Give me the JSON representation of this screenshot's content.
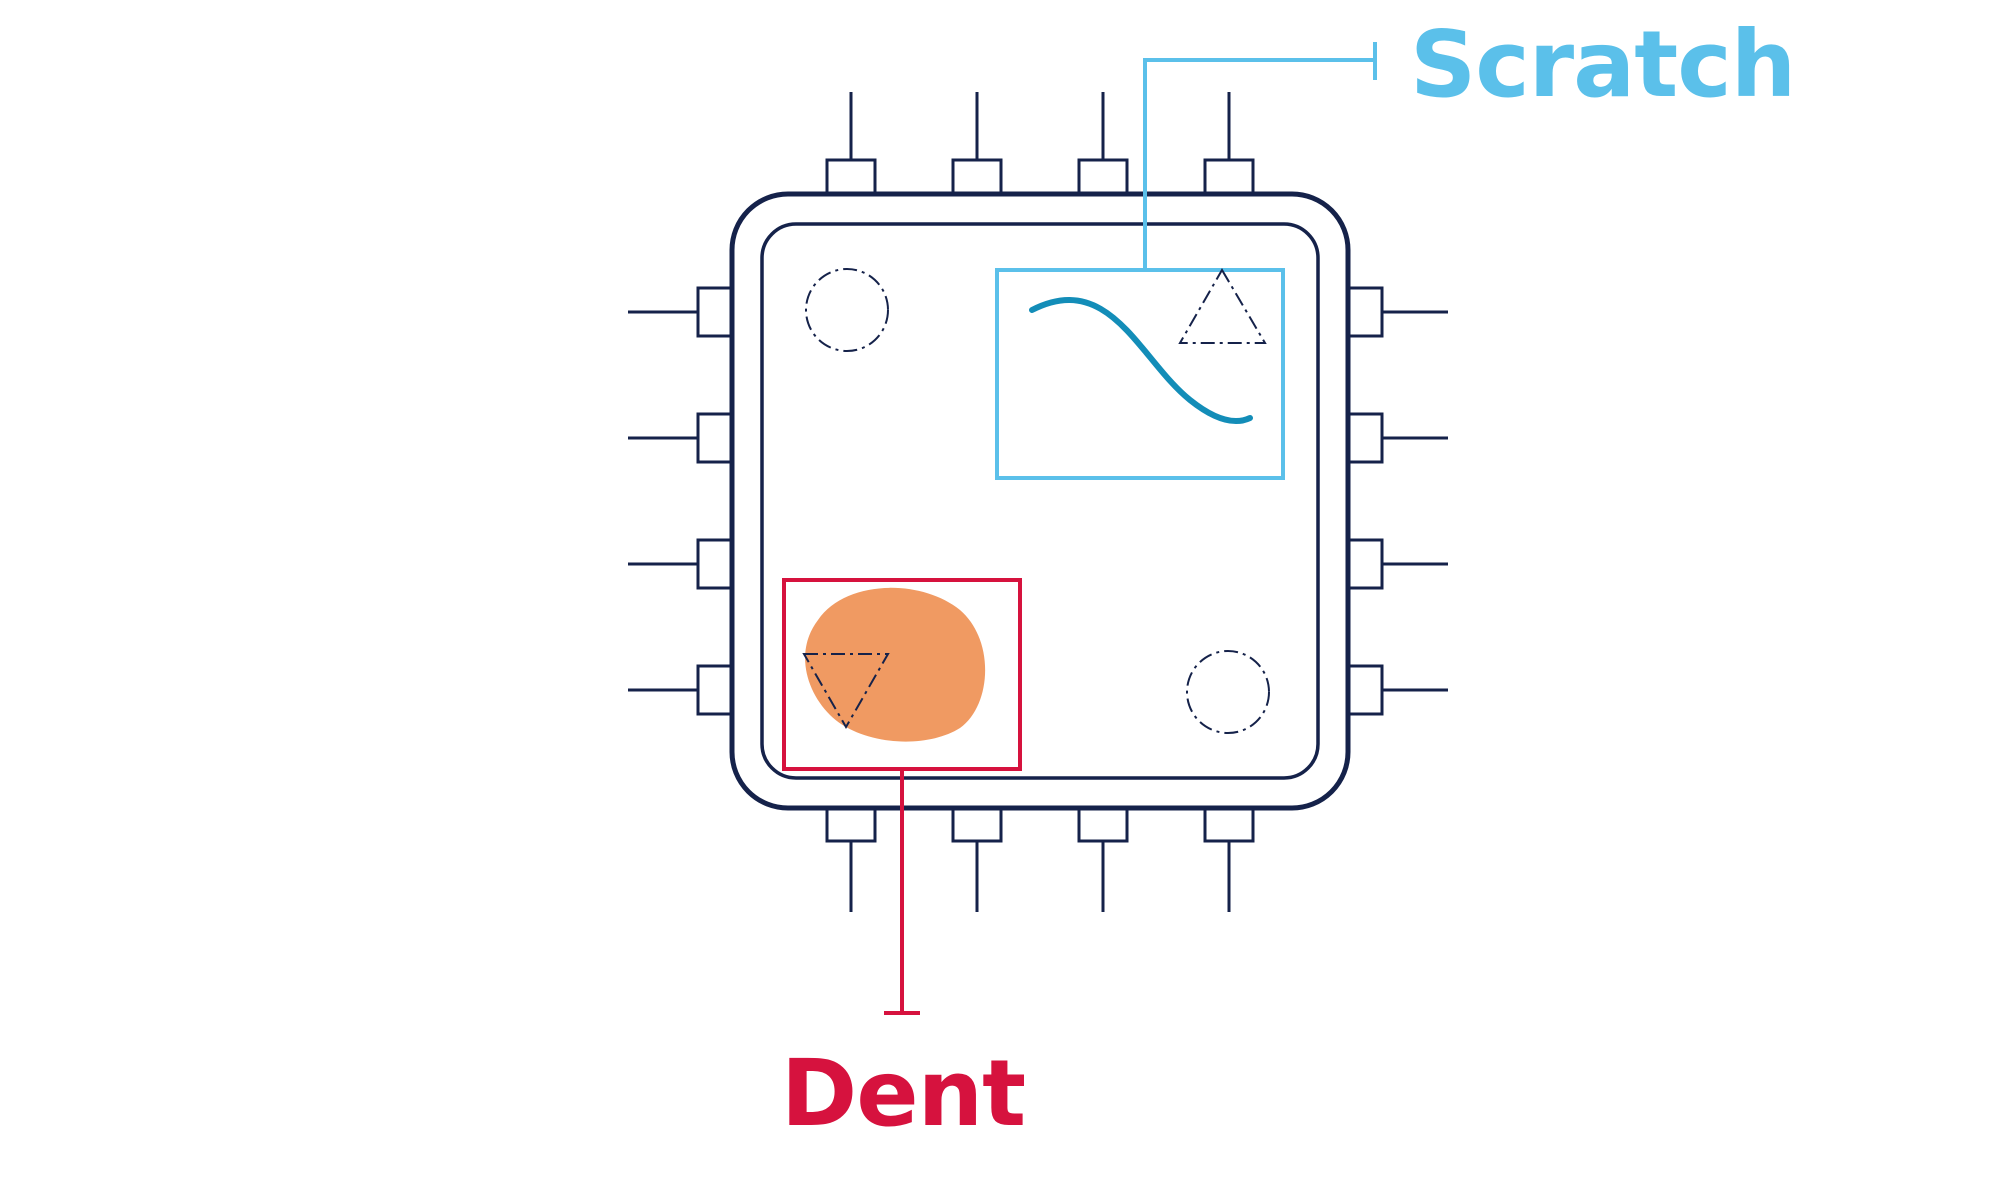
{
  "diagram": {
    "colors": {
      "chip_outline": "#15224a",
      "pin_outline": "#15224a",
      "scratch_accent": "#5bc0ea",
      "scratch_curve": "#138db8",
      "dent_accent": "#d6123e",
      "dent_fill": "#f09a62",
      "background": "#ffffff"
    },
    "annotations": {
      "scratch": {
        "label": "Scratch",
        "icon": "triangle-up-icon"
      },
      "dent": {
        "label": "Dent",
        "icon": "triangle-down-icon"
      }
    },
    "markers": {
      "top_left": "circle-marker-icon",
      "bottom_right": "circle-marker-icon"
    },
    "pins_per_side": 4
  }
}
